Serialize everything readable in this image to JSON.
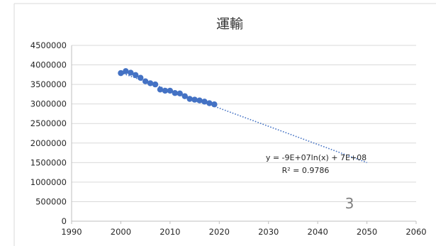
{
  "page_number": "3",
  "chart_data": {
    "type": "scatter",
    "title": "運輸",
    "xlabel": "",
    "ylabel": "",
    "xlim": [
      1990,
      2060
    ],
    "ylim": [
      0,
      4500000
    ],
    "x_ticks": [
      1990,
      2000,
      2010,
      2020,
      2030,
      2040,
      2050,
      2060
    ],
    "y_ticks": [
      0,
      500000,
      1000000,
      1500000,
      2000000,
      2500000,
      3000000,
      3500000,
      4000000,
      4500000
    ],
    "grid": "horizontal",
    "legend": "none",
    "colors": {
      "marker": "#4472c4",
      "trendline": "#4472c4",
      "grid": "#d9d9d9",
      "text": "#262626"
    },
    "series": [
      {
        "x": [
          2000,
          2001,
          2002,
          2003,
          2004,
          2005,
          2006,
          2007,
          2008,
          2009,
          2010,
          2011,
          2012,
          2013,
          2014,
          2015,
          2016,
          2017,
          2018,
          2019
        ],
        "y": [
          3790000,
          3840000,
          3800000,
          3740000,
          3670000,
          3580000,
          3530000,
          3500000,
          3370000,
          3340000,
          3340000,
          3280000,
          3270000,
          3200000,
          3130000,
          3110000,
          3090000,
          3060000,
          3020000,
          2990000
        ]
      }
    ],
    "trendline": {
      "type": "logarithmic",
      "style": "dotted",
      "x_range": [
        2000,
        2050
      ],
      "points": [
        [
          2000,
          3800000
        ],
        [
          2019,
          2940000
        ],
        [
          2050,
          1500000
        ]
      ],
      "equation": "y = -9E+07ln(x) + 7E+08",
      "r_squared": "R² = 0.9786"
    }
  }
}
